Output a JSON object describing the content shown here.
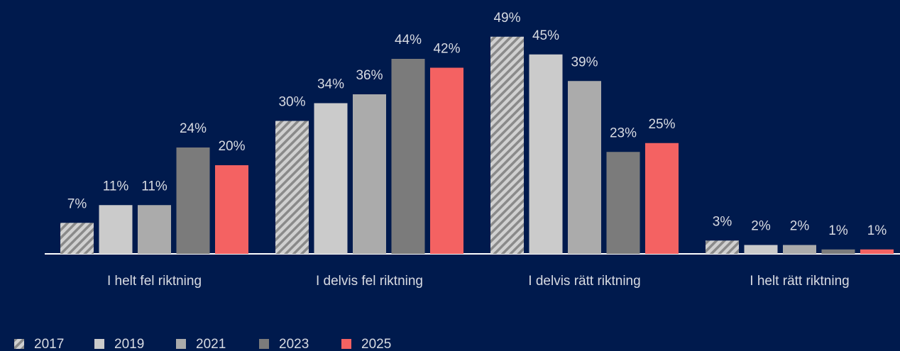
{
  "chart_data": {
    "type": "bar",
    "categories": [
      "I helt fel riktning",
      "I delvis fel riktning",
      "I delvis rätt riktning",
      "I helt rätt riktning"
    ],
    "series": [
      {
        "name": "2017",
        "color": "#b4b4b4",
        "hatch": true,
        "values": [
          7,
          30,
          49,
          3
        ],
        "value_labels": [
          "7%",
          "30%",
          "49%",
          "3%"
        ]
      },
      {
        "name": "2019",
        "color": "#cbcbcb",
        "values": [
          11,
          34,
          45,
          2
        ],
        "value_labels": [
          "11%",
          "34%",
          "45%",
          "2%"
        ]
      },
      {
        "name": "2021",
        "color": "#ababab",
        "values": [
          11,
          36,
          39,
          2
        ],
        "value_labels": [
          "11%",
          "36%",
          "39%",
          "2%"
        ]
      },
      {
        "name": "2023",
        "color": "#7b7b7b",
        "values": [
          24,
          44,
          23,
          1
        ],
        "value_labels": [
          "24%",
          "44%",
          "23%",
          "1%"
        ]
      },
      {
        "name": "2025",
        "color": "#f46262",
        "values": [
          20,
          42,
          25,
          1
        ],
        "value_labels": [
          "20%",
          "42%",
          "25%",
          "1%"
        ]
      }
    ]
  }
}
